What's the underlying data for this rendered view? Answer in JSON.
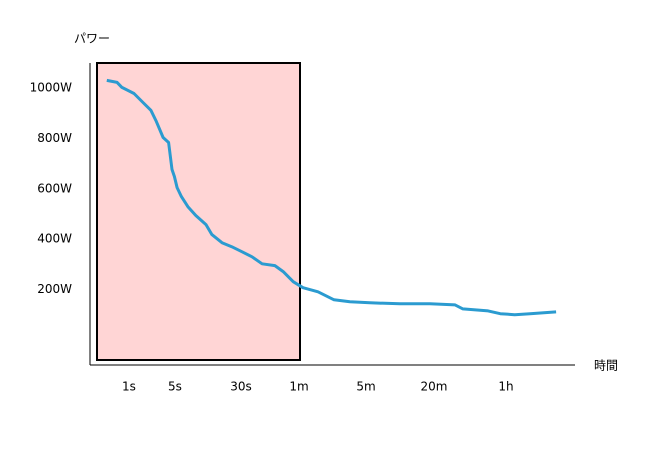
{
  "chart_data": {
    "type": "line",
    "y_label": "パワー",
    "x_label": "時間",
    "x": [
      0.46,
      0.66,
      0.78,
      1.19,
      1.63,
      2.15,
      2.6,
      3.3,
      4.0,
      4.5,
      4.9,
      5.3,
      5.95,
      7.1,
      8.8,
      11.6,
      13.6,
      17.9,
      23.3,
      30.4,
      34.2,
      38.6,
      45,
      49.7,
      56,
      66,
      94.7,
      139,
      204,
      325,
      600,
      1103,
      1655,
      1865,
      2740,
      3300,
      4110,
      5190,
      7730
    ],
    "series": [
      {
        "color": "#2b9bd0",
        "values": [
          1031,
          1023,
          1003,
          979,
          943,
          912,
          868,
          804,
          784,
          677,
          649,
          605,
          569,
          529,
          494,
          458,
          418,
          386,
          370,
          350,
          330,
          302,
          295,
          271,
          231,
          207,
          191,
          159,
          151,
          147,
          143,
          143,
          139,
          123,
          115,
          104,
          100,
          104,
          111
        ]
      }
    ],
    "xlim": [
      0.3,
      9000
    ],
    "xticks": [
      {
        "value": 1,
        "label": "1s"
      },
      {
        "value": 5,
        "label": "5s"
      },
      {
        "value": 30,
        "label": "30s"
      },
      {
        "value": 60,
        "label": "1m"
      },
      {
        "value": 300,
        "label": "5m"
      },
      {
        "value": 1200,
        "label": "20m"
      },
      {
        "value": 3600,
        "label": "1h"
      }
    ],
    "ylim": [
      -100,
      1100
    ],
    "yticks": [
      {
        "value": 200,
        "label": "200W"
      },
      {
        "value": 400,
        "label": "400W"
      },
      {
        "value": 600,
        "label": "600W"
      },
      {
        "value": 800,
        "label": "800W"
      },
      {
        "value": 1000,
        "label": "1000W"
      }
    ]
  }
}
